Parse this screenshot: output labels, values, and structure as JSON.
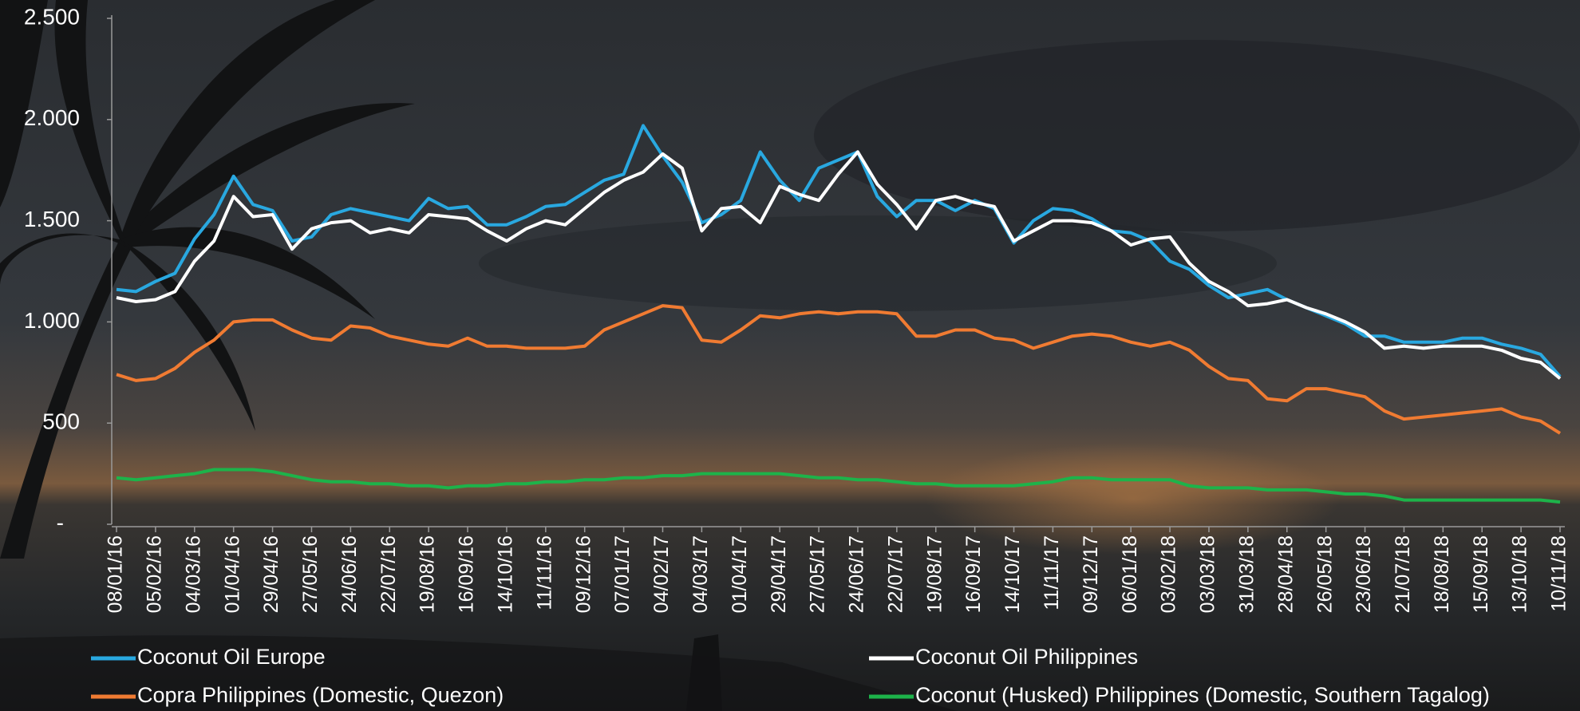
{
  "chart_data": {
    "type": "line",
    "categories": [
      "08/01/16",
      null,
      "05/02/16",
      null,
      "04/03/16",
      null,
      "01/04/16",
      null,
      "29/04/16",
      null,
      "27/05/16",
      null,
      "24/06/16",
      null,
      "22/07/16",
      null,
      "19/08/16",
      null,
      "16/09/16",
      null,
      "14/10/16",
      null,
      "11/11/16",
      null,
      "09/12/16",
      null,
      "07/01/17",
      null,
      "04/02/17",
      null,
      "04/03/17",
      null,
      "01/04/17",
      null,
      "29/04/17",
      null,
      "27/05/17",
      null,
      "24/06/17",
      null,
      "22/07/17",
      null,
      "19/08/17",
      null,
      "16/09/17",
      null,
      "14/10/17",
      null,
      "11/11/17",
      null,
      "09/12/17",
      null,
      "06/01/18",
      null,
      "03/02/18",
      null,
      "03/03/18",
      null,
      "31/03/18",
      null,
      "28/04/18",
      null,
      "26/05/18",
      null,
      "23/06/18",
      null,
      "21/07/18",
      null,
      "18/08/18",
      null,
      "15/09/18",
      null,
      "13/10/18",
      null,
      "10/11/18"
    ],
    "series": [
      {
        "name": "Coconut Oil Europe",
        "color": "#29a8e0",
        "values": [
          1160,
          1150,
          1200,
          1240,
          1410,
          1530,
          1720,
          1580,
          1550,
          1400,
          1420,
          1530,
          1560,
          1540,
          1520,
          1500,
          1610,
          1560,
          1570,
          1480,
          1480,
          1520,
          1570,
          1580,
          1640,
          1700,
          1730,
          1970,
          1820,
          1690,
          1490,
          1530,
          1600,
          1840,
          1700,
          1600,
          1760,
          1800,
          1840,
          1620,
          1520,
          1600,
          1600,
          1550,
          1600,
          1560,
          1390,
          1500,
          1560,
          1550,
          1510,
          1450,
          1440,
          1400,
          1300,
          1260,
          1180,
          1120,
          1140,
          1160,
          1110,
          1070,
          1030,
          990,
          930,
          930,
          900,
          900,
          900,
          920,
          920,
          890,
          870,
          840,
          730
        ]
      },
      {
        "name": "Coconut Oil Philippines",
        "color": "#ffffff",
        "values": [
          1120,
          1100,
          1110,
          1150,
          1300,
          1400,
          1620,
          1520,
          1530,
          1360,
          1460,
          1490,
          1500,
          1440,
          1460,
          1440,
          1530,
          1520,
          1510,
          1450,
          1400,
          1460,
          1500,
          1480,
          1560,
          1640,
          1700,
          1740,
          1830,
          1760,
          1450,
          1560,
          1570,
          1490,
          1670,
          1630,
          1600,
          1730,
          1840,
          1680,
          1580,
          1460,
          1600,
          1620,
          1590,
          1570,
          1400,
          1450,
          1500,
          1500,
          1490,
          1450,
          1380,
          1410,
          1420,
          1290,
          1200,
          1150,
          1080,
          1090,
          1110,
          1070,
          1040,
          1000,
          950,
          870,
          880,
          870,
          880,
          880,
          880,
          860,
          820,
          800,
          720
        ]
      },
      {
        "name": "Copra Philippines (Domestic, Quezon)",
        "color": "#f07b32",
        "values": [
          740,
          710,
          720,
          770,
          850,
          910,
          1000,
          1010,
          1010,
          960,
          920,
          910,
          980,
          970,
          930,
          910,
          890,
          880,
          920,
          880,
          880,
          870,
          870,
          870,
          880,
          960,
          1000,
          1040,
          1080,
          1070,
          910,
          900,
          960,
          1030,
          1020,
          1040,
          1050,
          1040,
          1050,
          1050,
          1040,
          930,
          930,
          960,
          960,
          920,
          910,
          870,
          900,
          930,
          940,
          930,
          900,
          880,
          900,
          860,
          780,
          720,
          710,
          620,
          610,
          670,
          670,
          650,
          630,
          560,
          520,
          530,
          540,
          550,
          560,
          570,
          530,
          510,
          450
        ]
      },
      {
        "name": "Coconut (Husked) Philippines (Domestic, Southern Tagalog)",
        "color": "#1db34a",
        "values": [
          230,
          220,
          230,
          240,
          250,
          270,
          270,
          270,
          260,
          240,
          220,
          210,
          210,
          200,
          200,
          190,
          190,
          180,
          190,
          190,
          200,
          200,
          210,
          210,
          220,
          220,
          230,
          230,
          240,
          240,
          250,
          250,
          250,
          250,
          250,
          240,
          230,
          230,
          220,
          220,
          210,
          200,
          200,
          190,
          190,
          190,
          190,
          200,
          210,
          230,
          230,
          220,
          220,
          220,
          220,
          190,
          180,
          180,
          180,
          170,
          170,
          170,
          160,
          150,
          150,
          140,
          120,
          120,
          120,
          120,
          120,
          120,
          120,
          120,
          110
        ]
      }
    ],
    "ylim": [
      0,
      2500
    ],
    "yticks": [
      {
        "value": 0,
        "label": "-"
      },
      500,
      {
        "value": 1000,
        "label": "1.000"
      },
      {
        "value": 1500,
        "label": "1.500"
      },
      {
        "value": 2000,
        "label": "2.000"
      },
      {
        "value": 2500,
        "label": "2.500"
      }
    ],
    "grid": false
  }
}
